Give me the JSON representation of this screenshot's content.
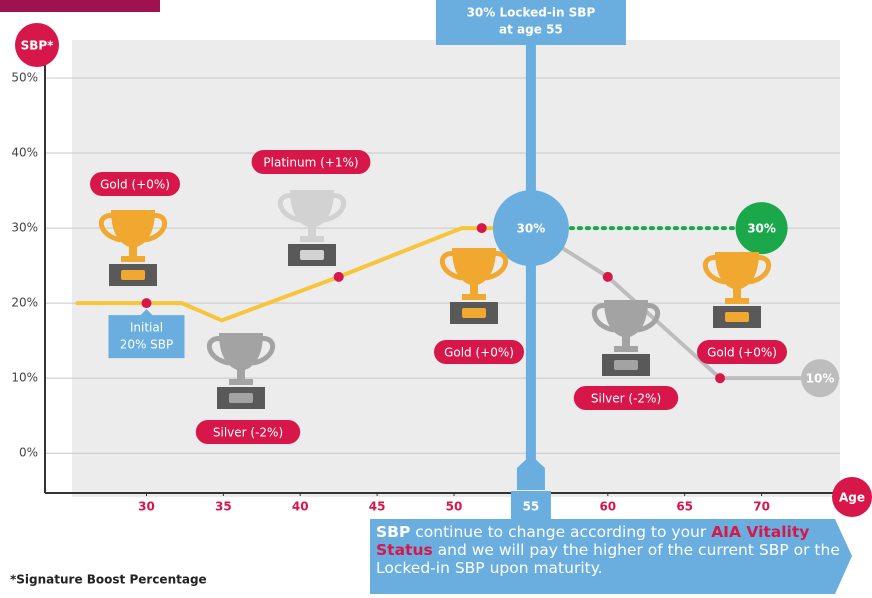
{
  "chart_data": {
    "type": "line",
    "y_axis_label": "SBP*",
    "x_axis_label": "Age",
    "xlim": [
      23.4,
      75.1
    ],
    "ylim": [
      -5.3,
      52.4
    ],
    "xticks": [
      30,
      35,
      40,
      45,
      50,
      55,
      60,
      65,
      70
    ],
    "yticks": [
      {
        "value": 0,
        "label": "0%"
      },
      {
        "value": 10,
        "label": "10%"
      },
      {
        "value": 20,
        "label": "20%"
      },
      {
        "value": 30,
        "label": "30%"
      },
      {
        "value": 40,
        "label": "40%"
      },
      {
        "value": 50,
        "label": "50%"
      }
    ],
    "grid": true,
    "series": [
      {
        "color": "#f7c43a",
        "x": [
          25.5,
          30,
          32.3,
          34.9,
          42.5,
          50.5,
          51.8,
          55
        ],
        "values": [
          20,
          20,
          20,
          17.7,
          23.5,
          30,
          30,
          30
        ]
      },
      {
        "color": "#bdbdbd",
        "x": [
          55,
          60,
          67.3,
          73.8
        ],
        "values": [
          30,
          23.5,
          10,
          10
        ],
        "value_labels": [
          null,
          null,
          null,
          "10%"
        ]
      },
      {
        "color": "#1aa84b",
        "dotted": true,
        "x": [
          55,
          70
        ],
        "values": [
          30,
          30
        ],
        "value_labels": [
          "30%",
          "30%"
        ]
      }
    ],
    "markers": {
      "color": "#d7174a",
      "x": [
        30,
        42.5,
        51.8,
        60,
        67.3
      ],
      "values": [
        20,
        23.5,
        30,
        23.5,
        10
      ]
    },
    "trophies": [
      {
        "label": "Gold (+0%)",
        "color": "#f0a830"
      },
      {
        "label": "Platinum (+1%)",
        "color": "#d2d2d2"
      },
      {
        "label": "Gold (+0%)",
        "color": "#f0a830"
      },
      {
        "label": "Silver (-2%)",
        "color": "#a3a3a3"
      },
      {
        "label": "Silver (-2%)",
        "color": "#a3a3a3"
      },
      {
        "label": "Gold (+0%)",
        "color": "#f0a830"
      }
    ],
    "initial_note": [
      "Initial",
      "20% SBP"
    ],
    "locked_note": [
      "30% Locked-in SBP",
      "at age 55"
    ],
    "footnote": "*Signature Boost Percentage",
    "explanation": [
      {
        "text": "SBP",
        "style": "bold"
      },
      {
        "text": " continue to change according to your ",
        "style": "normal"
      },
      {
        "text": "AIA Vitality Status",
        "style": "highlight"
      },
      {
        "text": " and we will pay the higher of the current SBP or the Locked-in SBP upon maturity.",
        "style": "normal"
      }
    ]
  }
}
